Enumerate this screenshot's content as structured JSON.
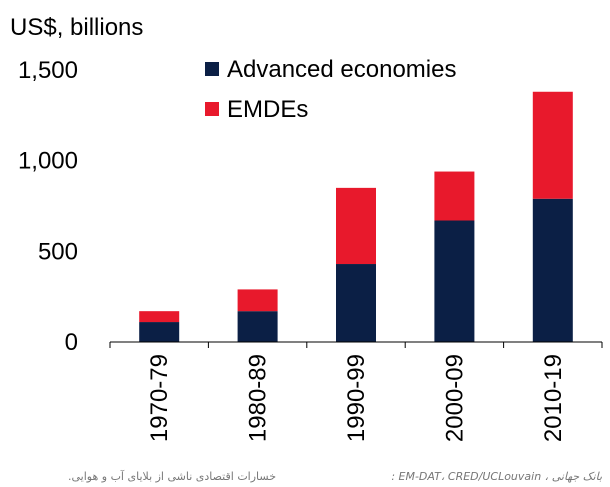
{
  "chart_data": {
    "type": "bar",
    "stacked": true,
    "unit_label": "US$, billions",
    "categories": [
      "1970-79",
      "1980-89",
      "1990-99",
      "2000-09",
      "2010-19"
    ],
    "series": [
      {
        "name": "Advanced economies",
        "color": "#0b1f45",
        "values": [
          110,
          170,
          430,
          670,
          790
        ]
      },
      {
        "name": "EMDEs",
        "color": "#e8192c",
        "values": [
          60,
          120,
          420,
          270,
          590
        ]
      }
    ],
    "ylim": [
      0,
      1500
    ],
    "yticks": [
      0,
      500,
      1000,
      1500
    ],
    "ytick_labels": [
      "0",
      "500",
      "1,000",
      "1,500"
    ],
    "grid": false,
    "legend_position": "top-right"
  },
  "caption": {
    "left": "خسارات اقتصادی ناشی از بلایای آب و هوایی.",
    "right": "بانک جهانی ، EM-DAT، CRED/UCLouvain :"
  }
}
